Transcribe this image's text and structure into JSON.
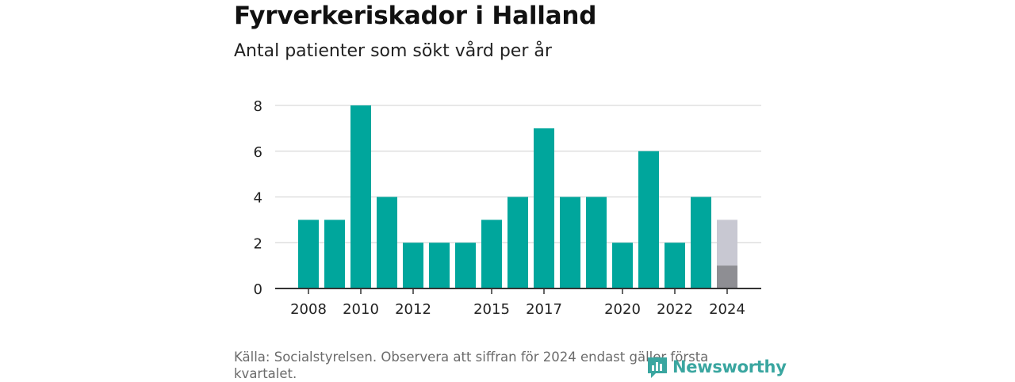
{
  "header": {
    "title": "Fyrverkeriskador i Halland",
    "subtitle": "Antal patienter som sökt vård per år"
  },
  "chart_data": {
    "type": "bar",
    "categories": [
      "2008",
      "2009",
      "2010",
      "2011",
      "2012",
      "2013",
      "2014",
      "2015",
      "2016",
      "2017",
      "2018",
      "2019",
      "2020",
      "2021",
      "2022",
      "2023",
      "2024"
    ],
    "values": [
      3,
      3,
      8,
      4,
      2,
      2,
      2,
      3,
      4,
      7,
      4,
      4,
      2,
      6,
      2,
      4,
      1
    ],
    "partial_estimate": {
      "category": "2024",
      "value": 3
    },
    "x_tick_labels": [
      "2008",
      "2010",
      "2012",
      "2015",
      "2017",
      "2020",
      "2022",
      "2024"
    ],
    "y_ticks": [
      0,
      2,
      4,
      6,
      8
    ],
    "ylim": [
      0,
      8
    ],
    "grid": true,
    "colors": {
      "bar": "#00a69c",
      "partial_actual": "#8e8e93",
      "partial_estimate": "#c8c8d2",
      "grid": "#d9d9d9",
      "axis": "#333333"
    }
  },
  "footer": {
    "source": "Källa: Socialstyrelsen. Observera att siffran för 2024 endast gäller första kvartalet.",
    "brand": "Newsworthy",
    "brand_color": "#3aa6a0"
  }
}
